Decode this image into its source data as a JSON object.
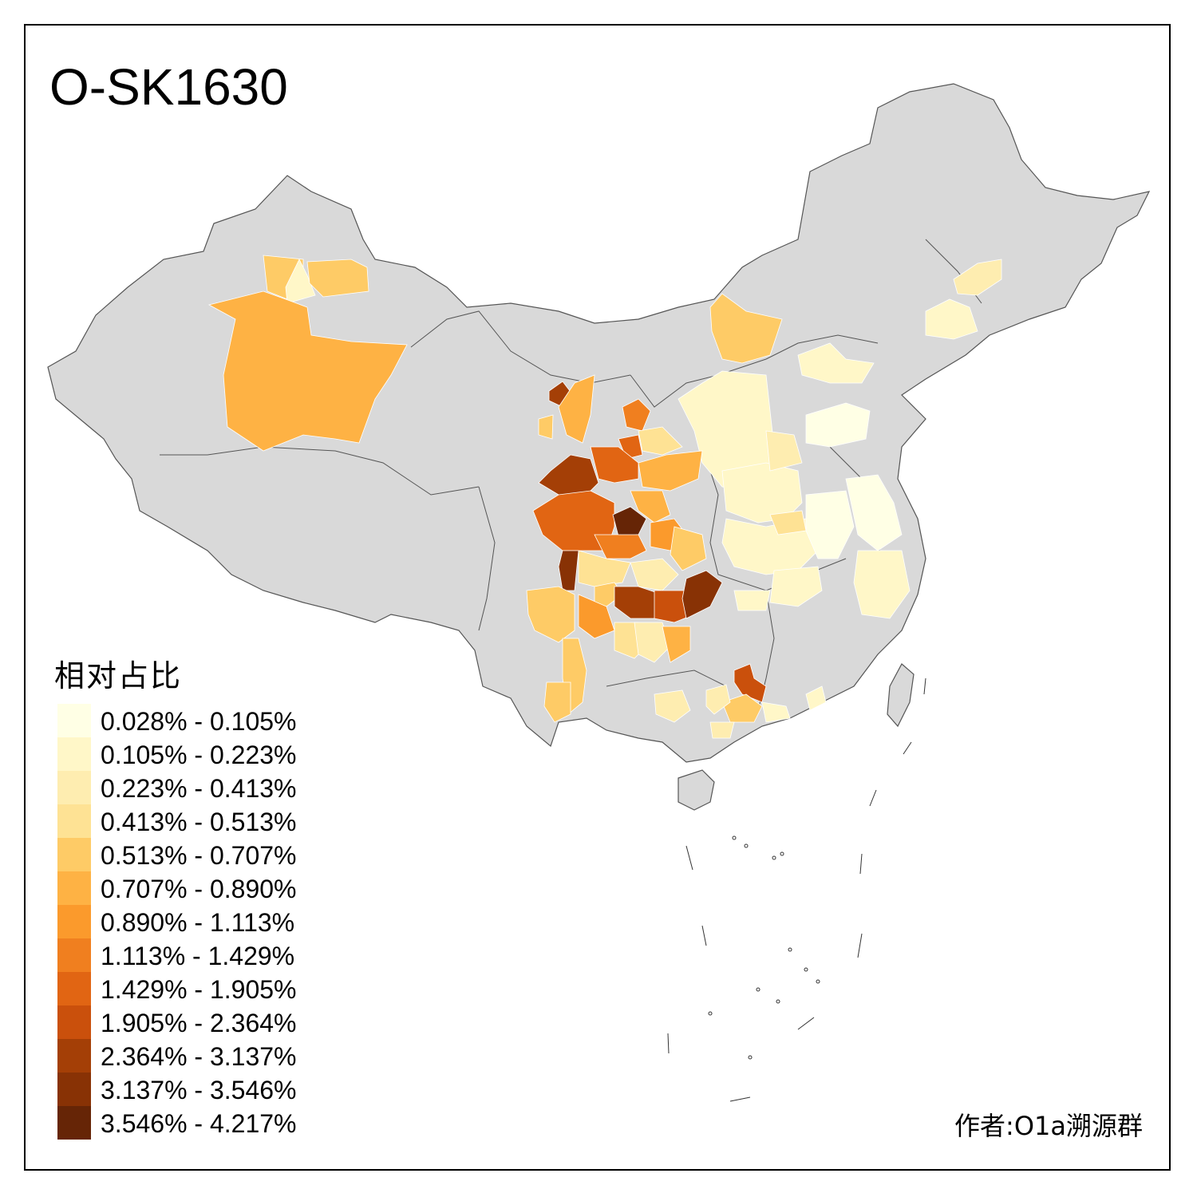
{
  "title": "O-SK1630",
  "legend": {
    "title": "相对占比",
    "items": [
      {
        "label": "0.028% - 0.105%",
        "color": "#FFFFE5"
      },
      {
        "label": "0.105% - 0.223%",
        "color": "#FFF7C8"
      },
      {
        "label": "0.223% - 0.413%",
        "color": "#FEEDB0"
      },
      {
        "label": "0.413% - 0.513%",
        "color": "#FEE294"
      },
      {
        "label": "0.513% - 0.707%",
        "color": "#FECB66"
      },
      {
        "label": "0.707% - 0.890%",
        "color": "#FEB244"
      },
      {
        "label": "0.890% - 1.113%",
        "color": "#FB9A2C"
      },
      {
        "label": "1.113% - 1.429%",
        "color": "#F07F1F"
      },
      {
        "label": "1.429% - 1.905%",
        "color": "#E16513"
      },
      {
        "label": "1.905% - 2.364%",
        "color": "#CA500C"
      },
      {
        "label": "2.364% - 3.137%",
        "color": "#A43F06"
      },
      {
        "label": "3.137% - 3.546%",
        "color": "#883205"
      },
      {
        "label": "3.546% - 4.217%",
        "color": "#662506"
      }
    ]
  },
  "author": "作者:O1a溯源群",
  "colors": {
    "base_land": "#D9D9D9",
    "border": "#555555"
  }
}
